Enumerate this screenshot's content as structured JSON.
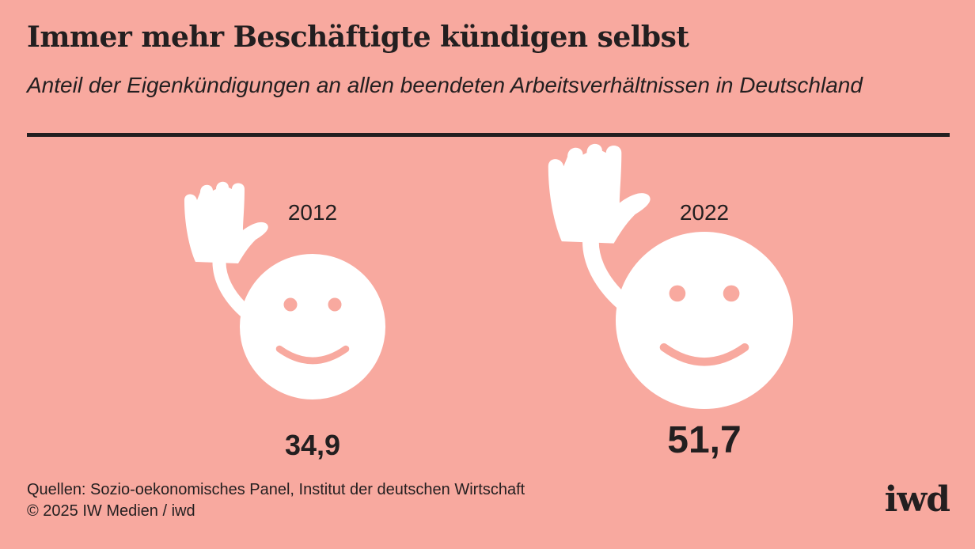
{
  "header": {
    "title": "Immer mehr Beschäftigte kündigen selbst",
    "subtitle": "Anteil der Eigenkündigungen an allen beendeten Arbeitsverhältnissen in Deutschland"
  },
  "chart_data": {
    "type": "pictogram",
    "categories": [
      "2012",
      "2022"
    ],
    "values": [
      34.9,
      51.7
    ],
    "value_labels": [
      "34,9",
      "51,7"
    ],
    "icon": "waving-smiley-icon",
    "grid": false,
    "colors": {
      "background": "#f8a99f",
      "icon": "#ffffff",
      "text": "#231f20"
    }
  },
  "footer": {
    "source": "Quellen: Sozio-oekonomisches Panel, Institut der deutschen Wirtschaft",
    "copyright": "© 2025 IW Medien / iwd"
  },
  "logo": {
    "text": "iwd"
  }
}
